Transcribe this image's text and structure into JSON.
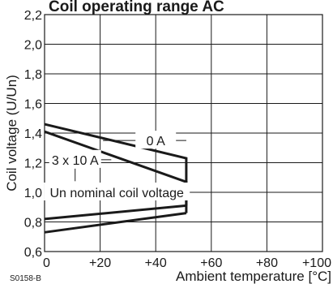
{
  "chart_data": {
    "type": "line",
    "title": "Coil operating range AC",
    "xlabel": "Ambient temperature [°C]",
    "ylabel": "Coil voltage (U/Un)",
    "xlim": [
      0,
      100
    ],
    "ylim": [
      0.6,
      2.2
    ],
    "x_ticks": [
      0,
      20,
      40,
      60,
      80,
      100
    ],
    "x_tick_labels": [
      "0",
      "+20",
      "+40",
      "+60",
      "+80",
      "+100"
    ],
    "y_ticks": [
      0.6,
      0.8,
      1.0,
      1.2,
      1.4,
      1.6,
      1.8,
      2.0,
      2.2
    ],
    "y_tick_labels": [
      "0,6",
      "0,8",
      "1,0",
      "1,2",
      "1,4",
      "1,6",
      "1,8",
      "2,0",
      "2,2"
    ],
    "grid": true,
    "series": [
      {
        "name": "0 A",
        "x": [
          0,
          51,
          51
        ],
        "y": [
          1.46,
          1.23,
          0.86
        ]
      },
      {
        "name": "3 x 10 A",
        "x": [
          0,
          51,
          51
        ],
        "y": [
          1.41,
          1.07,
          0.91
        ]
      },
      {
        "name": "",
        "x": [
          0,
          51
        ],
        "y": [
          0.73,
          0.86
        ]
      },
      {
        "name": "",
        "x": [
          0,
          51
        ],
        "y": [
          0.82,
          0.91
        ]
      }
    ],
    "annotations": [
      {
        "text": "0 A",
        "x": 40,
        "y": 1.35
      },
      {
        "text": "3 x 10 A",
        "x": 11,
        "y": 1.22
      },
      {
        "text": "Un nominal coil voltage",
        "x": 26,
        "y": 1.0
      }
    ],
    "code": "S0158-B",
    "colors": {
      "line": "#1a1a1a",
      "grid": "#1a1a1a",
      "text": "#1a1a1a"
    }
  }
}
